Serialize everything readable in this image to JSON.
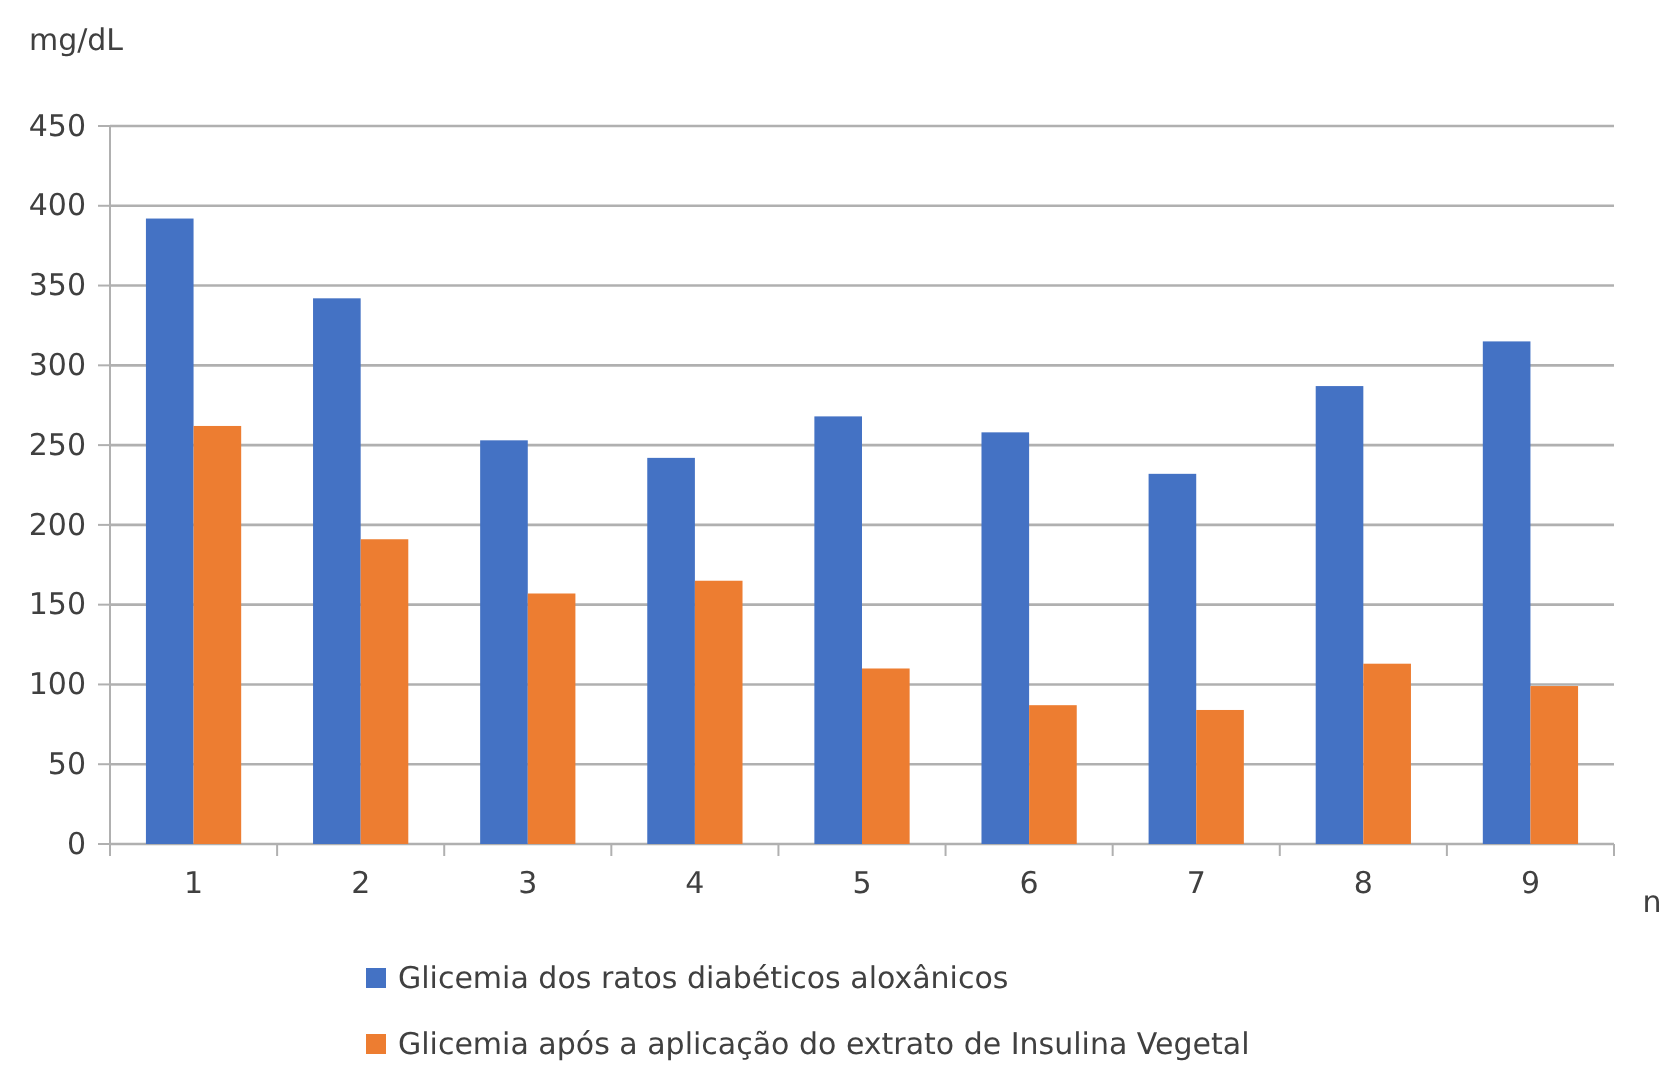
{
  "chart_data": {
    "type": "bar",
    "ylabel": "mg/dL",
    "xlabel": "n",
    "categories": [
      "1",
      "2",
      "3",
      "4",
      "5",
      "6",
      "7",
      "8",
      "9"
    ],
    "series": [
      {
        "name": "Glicemia dos ratos diabéticos aloxânicos",
        "color": "#4472c4",
        "values": [
          392,
          342,
          253,
          242,
          268,
          258,
          232,
          287,
          315
        ]
      },
      {
        "name": "Glicemia após a aplicação do extrato de Insulina Vegetal",
        "color": "#ed7d31",
        "values": [
          262,
          191,
          157,
          165,
          110,
          87,
          84,
          113,
          99
        ]
      }
    ],
    "ylim": [
      0,
      450
    ],
    "yticks": [
      0,
      50,
      100,
      150,
      200,
      250,
      300,
      350,
      400,
      450
    ],
    "grid": "y",
    "legend": "bottom"
  }
}
